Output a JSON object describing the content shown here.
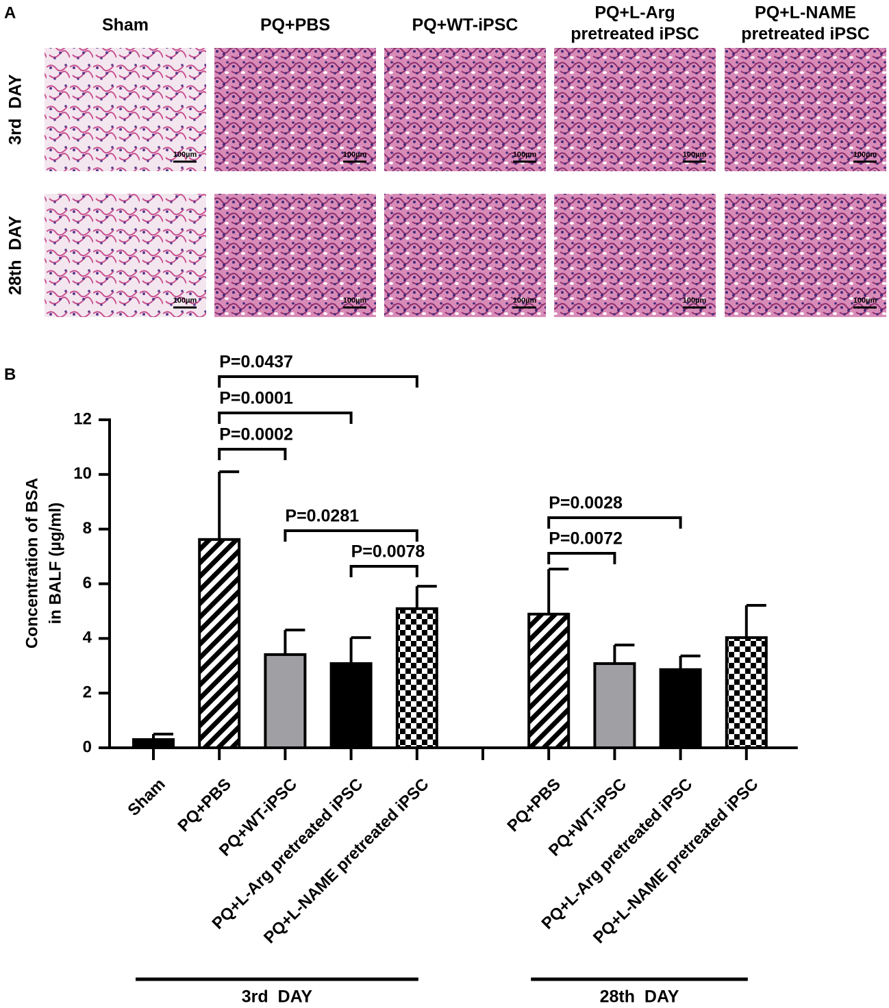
{
  "panel_labels": [
    "A",
    "B"
  ],
  "panel_a": {
    "columns": [
      [
        "Sham"
      ],
      [
        "PQ+PBS"
      ],
      [
        "PQ+WT-iPSC"
      ],
      [
        "PQ+L-Arg",
        "pretreated iPSC"
      ],
      [
        "PQ+L-NAME",
        "pretreated iPSC"
      ]
    ],
    "rows": [
      "3rd  DAY",
      "28th  DAY"
    ],
    "scale_bar": "100µm"
  },
  "chart_data": {
    "type": "bar",
    "y_label": [
      "Concentration of BSA",
      "in BALF (µg/ml)"
    ],
    "categories": [
      "Sham",
      "PQ+PBS",
      "PQ+WT-iPSC",
      "PQ+L-Arg pretreated iPSC",
      "PQ+L-NAME pretreated iPSC",
      null,
      "PQ+PBS",
      "PQ+WT-iPSC",
      "PQ+L-Arg pretreated iPSC",
      "PQ+L-NAME pretreated iPSC"
    ],
    "values": [
      0.3,
      7.62,
      3.41,
      3.08,
      5.09,
      null,
      4.89,
      3.08,
      2.86,
      4.03
    ],
    "errors": [
      0.2,
      2.48,
      0.9,
      0.95,
      0.82,
      null,
      1.65,
      0.68,
      0.5,
      1.18
    ],
    "bar_fill": [
      "#000000",
      "stripes",
      "#a0a0a4",
      "#000000",
      "checker",
      null,
      "stripes",
      "#a0a0a4",
      "#000000",
      "checker"
    ],
    "ylim": [
      0,
      12
    ],
    "yticks": [
      0,
      2,
      4,
      6,
      8,
      10,
      12
    ],
    "groups": [
      {
        "label": "3rd  DAY",
        "from": 0,
        "to": 4
      },
      {
        "label": "28th  DAY",
        "from": 6,
        "to": 9
      }
    ],
    "brackets": [
      {
        "label": "P=0.0002",
        "from": 1,
        "to": 2
      },
      {
        "label": "P=0.0001",
        "from": 1,
        "to": 3
      },
      {
        "label": "P=0.0437",
        "from": 1,
        "to": 4
      },
      {
        "label": "P=0.0281",
        "from": 2,
        "to": 4
      },
      {
        "label": "P=0.0078",
        "from": 3,
        "to": 4
      },
      {
        "label": "P=0.0072",
        "from": 6,
        "to": 7
      },
      {
        "label": "P=0.0028",
        "from": 6,
        "to": 8
      }
    ]
  }
}
